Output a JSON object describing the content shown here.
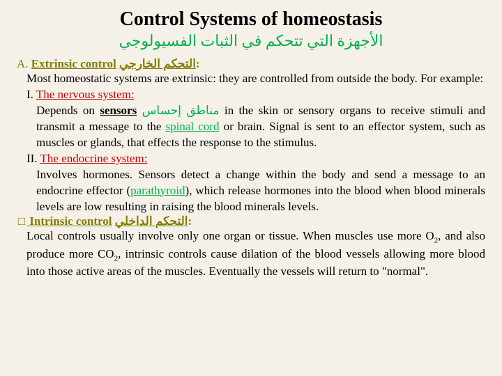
{
  "title": "Control Systems of homeostasis",
  "subtitle_ar": "الأجهزة التي تتحكم في الثبات الفسيولوجي",
  "a_label": "A. ",
  "a_heading": "Extrinsic control",
  "a_heading_ar": "التحكم الخارجي",
  "a_colon": ":",
  "a_body": "Most homeostatic systems are extrinsic: they are controlled from outside the body. For example:",
  "i_label": "I.  ",
  "i_heading": "The nervous system:",
  "i_body_1": "Depends on ",
  "i_sensors": "sensors",
  "i_sensors_ar": "مناطق إحساس",
  "i_body_2": " in the skin or sensory organs to receive stimuli and transmit a message to the ",
  "i_spinal": "spinal cord",
  "i_body_3": " or brain. Signal is sent to an effector system, such as muscles or glands, that effects the response to the stimulus.",
  "ii_label": "II. ",
  "ii_heading": "The endocrine system:",
  "ii_body_1": "Involves hormones. Sensors detect a change within the body and send a message to an endocrine effector (",
  "ii_para": "parathyroid",
  "ii_body_2": "), which release hormones into the blood when blood minerals levels are low resulting in raising the blood minerals levels.",
  "b_bullet": "□",
  "b_heading": " Intrinsic control",
  "b_heading_ar": "التحكم الداخلي",
  "b_colon": ":",
  "b_body_1": "Local controls usually involve only one organ or tissue. When muscles use more O",
  "b_sub1": "2",
  "b_body_2": ", and also produce more CO",
  "b_sub2": "2",
  "b_body_3": ", intrinsic controls cause dilation of the blood vessels allowing more blood into those active areas of the muscles. Eventually the vessels will return to \"normal\"."
}
